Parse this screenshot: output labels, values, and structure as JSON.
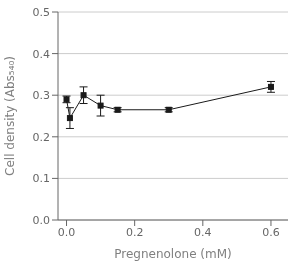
{
  "chart_data": {
    "type": "line",
    "x": [
      0,
      0.01,
      0.05,
      0.1,
      0.15,
      0.3,
      0.6
    ],
    "values": [
      0.29,
      0.245,
      0.3,
      0.275,
      0.265,
      0.265,
      0.32
    ],
    "yerr": [
      0.008,
      0.025,
      0.02,
      0.025,
      0.005,
      0.005,
      0.013
    ],
    "xlabel": "Pregnenolone (mM)",
    "ylabel": "Cell density (Abs₅₄₀)",
    "xlim": [
      -0.025,
      0.65
    ],
    "ylim": [
      0,
      0.5
    ],
    "xticks": [
      {
        "value": 0,
        "label": "0.0"
      },
      0.2,
      0.4,
      0.6
    ],
    "yticks": [
      {
        "value": 0,
        "label": "0.0"
      },
      0.1,
      0.2,
      0.3,
      0.4,
      0.5
    ],
    "color": "#1a1a1a",
    "marker": "square",
    "grid": true
  }
}
